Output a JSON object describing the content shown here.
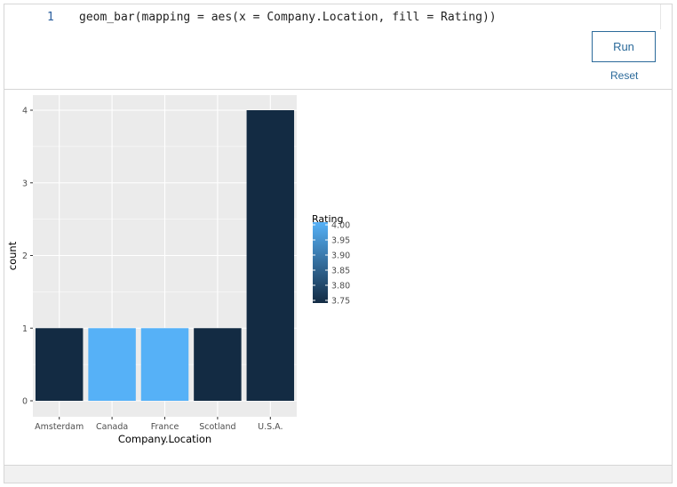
{
  "editor": {
    "line_number": "1",
    "code": "geom_bar(mapping = aes(x = Company.Location, fill = Rating))"
  },
  "controls": {
    "run_label": "Run",
    "reset_label": "Reset"
  },
  "chart_data": {
    "type": "bar",
    "categories": [
      "Amsterdam",
      "Canada",
      "France",
      "Scotland",
      "U.S.A."
    ],
    "values": [
      1,
      1,
      1,
      1,
      4
    ],
    "fill_values": [
      3.75,
      4.0,
      4.0,
      3.75,
      3.75
    ],
    "xlabel": "Company.Location",
    "ylabel": "count",
    "ylim": [
      0,
      4
    ],
    "yticks": [
      "0",
      "1",
      "2",
      "3",
      "4"
    ],
    "grid": true,
    "legend": {
      "title": "Rating",
      "placement": "right",
      "ticks": [
        "4.00",
        "3.95",
        "3.90",
        "3.85",
        "3.80",
        "3.75"
      ],
      "range": [
        3.75,
        4.0
      ],
      "color_low": "#132b43",
      "color_high": "#56b1f7"
    },
    "panel_background": "#ebebeb"
  }
}
